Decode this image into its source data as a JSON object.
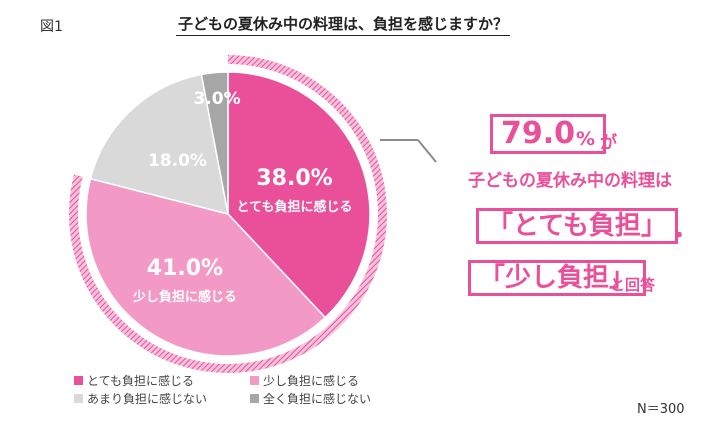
{
  "figure_label": "図1",
  "chart_data": {
    "type": "pie",
    "title": "子どもの夏休み中の料理は、負担を感じますか？",
    "slices": [
      {
        "label": "とても負担に感じる",
        "value": 38.0,
        "value_text": "38.0%",
        "color": "#ea4f9a"
      },
      {
        "label": "少し負担に感じる",
        "value": 41.0,
        "value_text": "41.0%",
        "color": "#f399c6"
      },
      {
        "label": "あまり負担に感じない",
        "value": 18.0,
        "value_text": "18.0%",
        "color": "#d9d9d9"
      },
      {
        "label": "全く負担に感じない",
        "value": 3.0,
        "value_text": "3.0%",
        "color": "#a6a6a6"
      }
    ],
    "start": "12 o'clock, clockwise",
    "legend_position": "bottom-left",
    "highlight_ring": "first two slices (79.0%)"
  },
  "callout": {
    "value": "79.0",
    "percent_sign": "%",
    "particle": "が",
    "subject": "子どもの夏休み中の料理は",
    "line1": "「とても負担」",
    "line1_suffix": "・",
    "line2": "「少し負担」",
    "line2_suffix": "と回答"
  },
  "sample_size": "N＝300",
  "colors": {
    "accent": "#ea4f9a",
    "leader": "#8c8c8c"
  }
}
